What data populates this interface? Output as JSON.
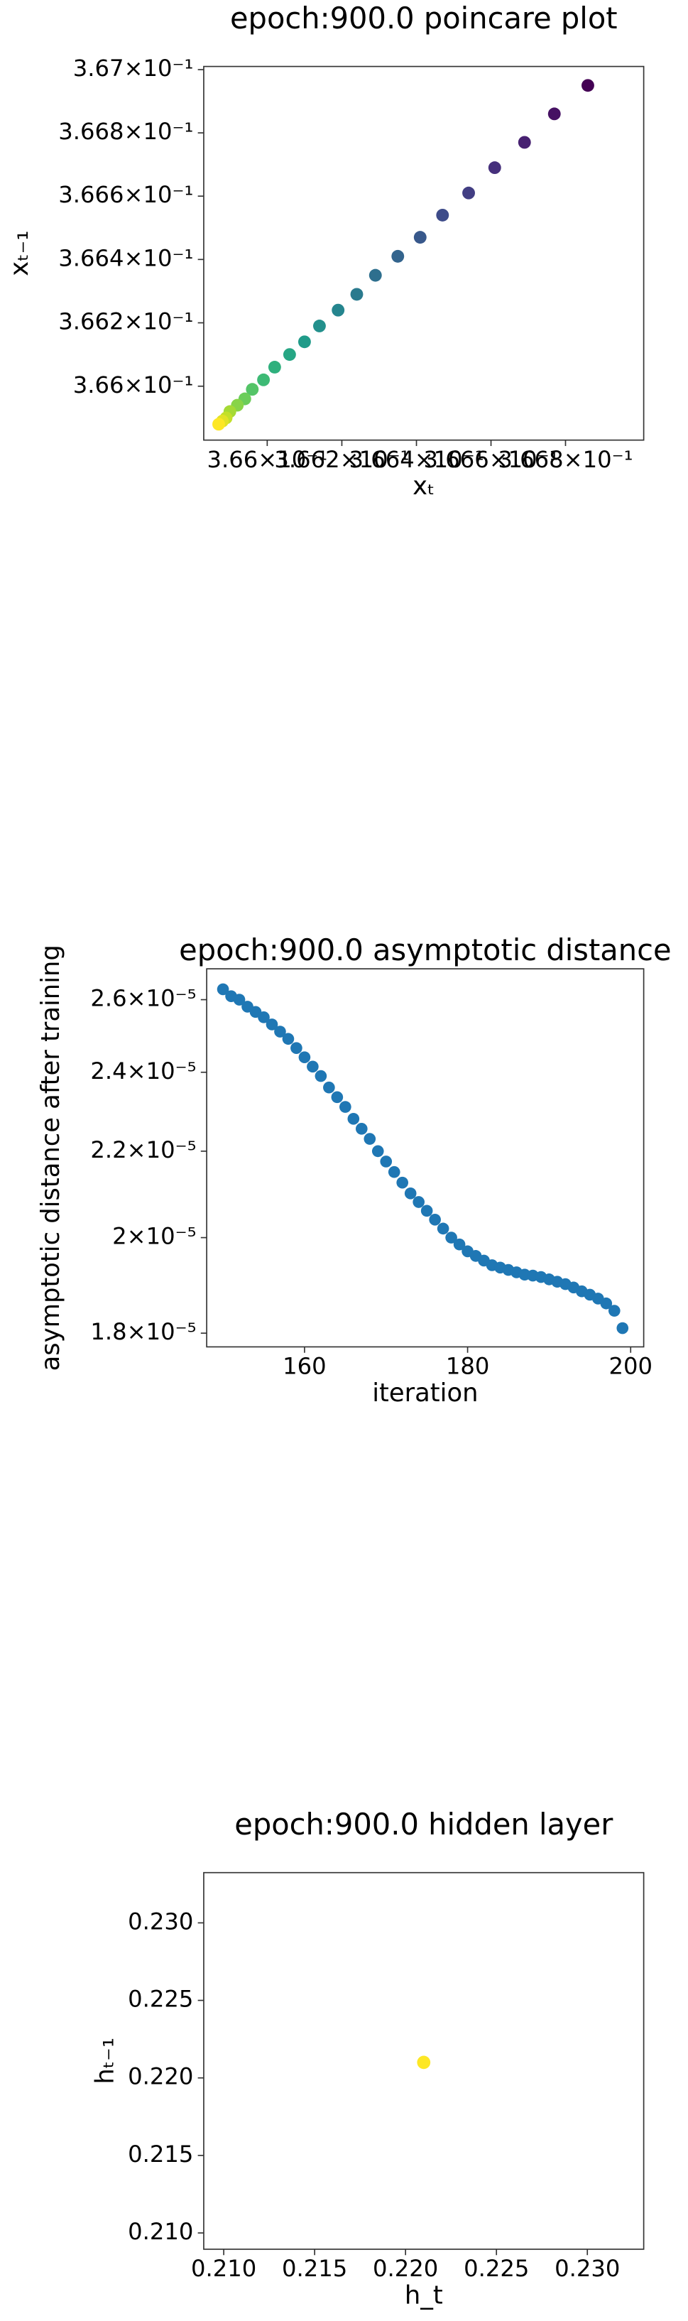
{
  "chart_data": [
    {
      "type": "scatter",
      "title": "epoch:900.0 poincare plot",
      "x_label": "xₜ",
      "y_label": "xₜ₋₁",
      "x": [
        0.36686,
        0.36677,
        0.36669,
        0.36661,
        0.36654,
        0.36647,
        0.36641,
        0.36635,
        0.36629,
        0.36624,
        0.36619,
        0.36614,
        0.3661,
        0.36606,
        0.36602,
        0.36599,
        0.36596,
        0.36594,
        0.36592,
        0.3659,
        0.36589,
        0.36588,
        0.36587
      ],
      "values": [
        0.36695,
        0.36686,
        0.36677,
        0.36669,
        0.36661,
        0.36654,
        0.36647,
        0.36641,
        0.36635,
        0.36629,
        0.36624,
        0.36619,
        0.36614,
        0.3661,
        0.36606,
        0.36602,
        0.36599,
        0.36596,
        0.36594,
        0.36592,
        0.3659,
        0.36589,
        0.36588
      ],
      "colormap": "viridis",
      "xlog": true,
      "ylog": true,
      "xlim": [
        0.36583,
        0.36701
      ],
      "ylim": [
        0.36583,
        0.36701
      ],
      "xticks": [
        {
          "value": 0.366,
          "label": "3.66×10⁻¹"
        },
        {
          "value": 0.3662,
          "label": "3.662×10⁻¹"
        },
        {
          "value": 0.3664,
          "label": "3.664×10⁻¹"
        },
        {
          "value": 0.3666,
          "label": "3.666×10⁻¹"
        },
        {
          "value": 0.3668,
          "label": "3.668×10⁻¹"
        }
      ],
      "yticks": [
        {
          "value": 0.366,
          "label": "3.66×10⁻¹"
        },
        {
          "value": 0.3662,
          "label": "3.662×10⁻¹"
        },
        {
          "value": 0.3664,
          "label": "3.664×10⁻¹"
        },
        {
          "value": 0.3666,
          "label": "3.666×10⁻¹"
        },
        {
          "value": 0.3668,
          "label": "3.668×10⁻¹"
        },
        {
          "value": 0.367,
          "label": "3.67×10⁻¹"
        }
      ]
    },
    {
      "type": "scatter",
      "title": "epoch:900.0 asymptotic distance",
      "x_label": "iteration",
      "y_label": "asymptotic distance after training",
      "x": [
        150,
        151,
        152,
        153,
        154,
        155,
        156,
        157,
        158,
        159,
        160,
        161,
        162,
        163,
        164,
        165,
        166,
        167,
        168,
        169,
        170,
        171,
        172,
        173,
        174,
        175,
        176,
        177,
        178,
        179,
        180,
        181,
        182,
        183,
        184,
        185,
        186,
        187,
        188,
        189,
        190,
        191,
        192,
        193,
        194,
        195,
        196,
        197,
        198,
        199
      ],
      "values": [
        2.63e-05,
        2.61e-05,
        2.6e-05,
        2.58e-05,
        2.565e-05,
        2.55e-05,
        2.53e-05,
        2.51e-05,
        2.49e-05,
        2.465e-05,
        2.44e-05,
        2.415e-05,
        2.39e-05,
        2.36e-05,
        2.335e-05,
        2.31e-05,
        2.28e-05,
        2.255e-05,
        2.23e-05,
        2.2e-05,
        2.175e-05,
        2.15e-05,
        2.125e-05,
        2.1e-05,
        2.08e-05,
        2.06e-05,
        2.04e-05,
        2.02e-05,
        2e-05,
        1.985e-05,
        1.97e-05,
        1.96e-05,
        1.95e-05,
        1.94e-05,
        1.935e-05,
        1.93e-05,
        1.925e-05,
        1.92e-05,
        1.918e-05,
        1.915e-05,
        1.91e-05,
        1.905e-05,
        1.9e-05,
        1.893e-05,
        1.885e-05,
        1.878e-05,
        1.87e-05,
        1.86e-05,
        1.845e-05,
        1.81e-05
      ],
      "color": "#1f77b4",
      "ylog": true,
      "xlim": [
        148,
        201.6
      ],
      "ylim": [
        1.773e-05,
        2.69e-05
      ],
      "xticks": [
        160,
        180,
        200
      ],
      "yticks": [
        {
          "value": 1.8e-05,
          "label": "1.8×10⁻⁵"
        },
        {
          "value": 2e-05,
          "label": "2×10⁻⁵"
        },
        {
          "value": 2.2e-05,
          "label": "2.2×10⁻⁵"
        },
        {
          "value": 2.4e-05,
          "label": "2.4×10⁻⁵"
        },
        {
          "value": 2.6e-05,
          "label": "2.6×10⁻⁵"
        }
      ]
    },
    {
      "type": "scatter",
      "title": "epoch:900.0 hidden layer",
      "x_label": "h_t",
      "y_label": "hₜ₋₁",
      "x": [
        0.221
      ],
      "values": [
        0.221
      ],
      "color": "#fde725",
      "xlim": [
        0.2089,
        0.2331
      ],
      "ylim": [
        0.20895,
        0.23324
      ],
      "xticks": [
        {
          "value": 0.21,
          "label": "0.210"
        },
        {
          "value": 0.215,
          "label": "0.215"
        },
        {
          "value": 0.22,
          "label": "0.220"
        },
        {
          "value": 0.225,
          "label": "0.225"
        },
        {
          "value": 0.23,
          "label": "0.230"
        }
      ],
      "yticks": [
        {
          "value": 0.21,
          "label": "0.210"
        },
        {
          "value": 0.215,
          "label": "0.215"
        },
        {
          "value": 0.22,
          "label": "0.220"
        },
        {
          "value": 0.225,
          "label": "0.225"
        },
        {
          "value": 0.23,
          "label": "0.230"
        }
      ]
    }
  ]
}
